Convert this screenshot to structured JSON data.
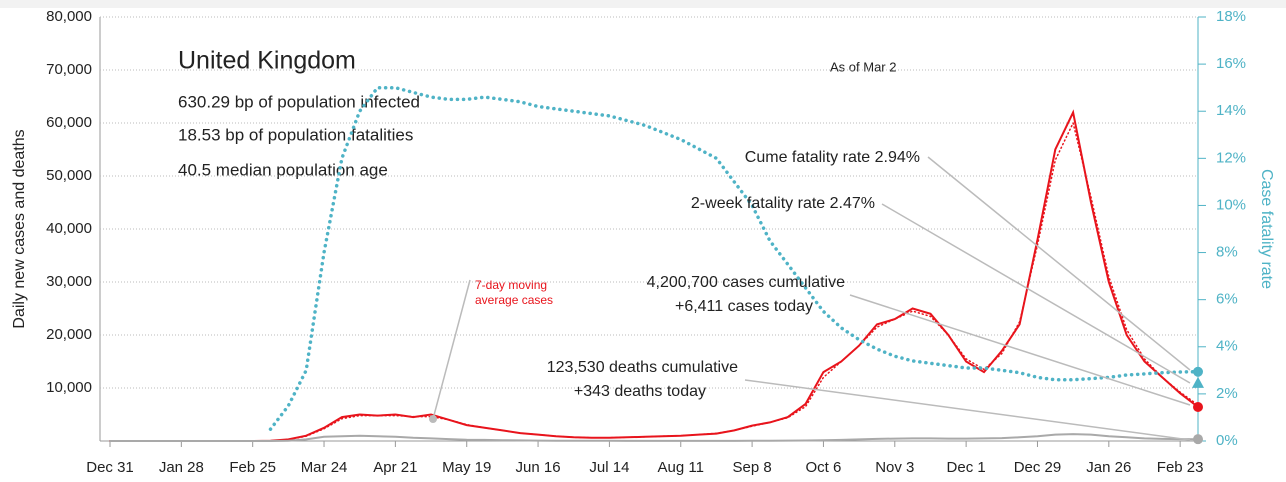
{
  "chart_data": {
    "type": "line",
    "panel_title": "United Kingdom",
    "stats": [
      "630.29 bp of population infected",
      "18.53 bp of population fatalities",
      "40.5 median population age"
    ],
    "as_of": "As of Mar 2",
    "ylabel": "Daily new cases and deaths",
    "y2label": "Case fatality rate",
    "xlim": [
      0,
      427
    ],
    "xticks": [
      {
        "value": 0,
        "label": "Dec 31"
      },
      {
        "value": 28,
        "label": "Jan 28"
      },
      {
        "value": 56,
        "label": "Feb 25"
      },
      {
        "value": 84,
        "label": "Mar 24"
      },
      {
        "value": 112,
        "label": "Apr 21"
      },
      {
        "value": 140,
        "label": "May 19"
      },
      {
        "value": 168,
        "label": "Jun 16"
      },
      {
        "value": 196,
        "label": "Jul 14"
      },
      {
        "value": 224,
        "label": "Aug 11"
      },
      {
        "value": 252,
        "label": "Sep 8"
      },
      {
        "value": 280,
        "label": "Oct 6"
      },
      {
        "value": 308,
        "label": "Nov 3"
      },
      {
        "value": 336,
        "label": "Dec 1"
      },
      {
        "value": 364,
        "label": "Dec 29"
      },
      {
        "value": 392,
        "label": "Jan 26"
      },
      {
        "value": 420,
        "label": "Feb 23"
      }
    ],
    "ylim": [
      0,
      80000
    ],
    "yticks": [
      {
        "value": 10000,
        "label": "10,000"
      },
      {
        "value": 20000,
        "label": "20,000"
      },
      {
        "value": 30000,
        "label": "30,000"
      },
      {
        "value": 40000,
        "label": "40,000"
      },
      {
        "value": 50000,
        "label": "50,000"
      },
      {
        "value": 60000,
        "label": "60,000"
      },
      {
        "value": 70000,
        "label": "70,000"
      },
      {
        "value": 80000,
        "label": "80,000"
      }
    ],
    "y2lim": [
      0,
      18
    ],
    "y2ticks": [
      {
        "value": 0,
        "label": "0%"
      },
      {
        "value": 2,
        "label": "2%"
      },
      {
        "value": 4,
        "label": "4%"
      },
      {
        "value": 6,
        "label": "6%"
      },
      {
        "value": 8,
        "label": "8%"
      },
      {
        "value": 10,
        "label": "10%"
      },
      {
        "value": 12,
        "label": "12%"
      },
      {
        "value": 14,
        "label": "14%"
      },
      {
        "value": 16,
        "label": "16%"
      },
      {
        "value": 18,
        "label": "18%"
      }
    ],
    "grid": true,
    "x": [
      0,
      7,
      14,
      21,
      28,
      35,
      42,
      49,
      56,
      63,
      70,
      77,
      84,
      91,
      98,
      105,
      112,
      119,
      126,
      133,
      140,
      147,
      154,
      161,
      168,
      175,
      182,
      189,
      196,
      203,
      210,
      217,
      224,
      231,
      238,
      245,
      252,
      259,
      266,
      273,
      280,
      287,
      294,
      301,
      308,
      315,
      322,
      329,
      336,
      343,
      350,
      357,
      364,
      371,
      378,
      385,
      392,
      399,
      406,
      413,
      420,
      427
    ],
    "series": [
      {
        "color": "#e8141c",
        "style": "solid",
        "values": [
          0,
          0,
          0,
          0,
          0,
          0,
          0,
          0,
          0,
          50,
          300,
          1000,
          2500,
          4500,
          5000,
          4800,
          5000,
          4500,
          5000,
          4000,
          3000,
          2500,
          2000,
          1500,
          1200,
          900,
          700,
          600,
          600,
          700,
          800,
          900,
          1000,
          1200,
          1400,
          2000,
          2900,
          3500,
          4500,
          7000,
          13000,
          15000,
          18000,
          22000,
          23000,
          25000,
          24000,
          20000,
          15000,
          13000,
          17000,
          22000,
          38000,
          55000,
          62000,
          45000,
          30000,
          20000,
          15000,
          12000,
          9000,
          6411
        ]
      },
      {
        "color": "#e8141c",
        "style": "dotted",
        "values": [
          0,
          0,
          0,
          0,
          0,
          0,
          0,
          0,
          0,
          30,
          250,
          900,
          2300,
          4200,
          4800,
          4800,
          4800,
          4600,
          4600,
          4000,
          3100,
          2500,
          2000,
          1500,
          1200,
          900,
          700,
          620,
          620,
          700,
          800,
          900,
          1000,
          1200,
          1450,
          2000,
          2800,
          3500,
          4400,
          6500,
          12000,
          15000,
          18000,
          21500,
          23000,
          24500,
          23500,
          20000,
          15500,
          13500,
          16500,
          22500,
          37000,
          53000,
          60000,
          46000,
          31000,
          21000,
          15500,
          12000,
          9200,
          6800
        ]
      },
      {
        "color": "#a9a9a9",
        "style": "solid",
        "values": [
          0,
          0,
          0,
          0,
          0,
          0,
          0,
          0,
          0,
          0,
          50,
          300,
          800,
          900,
          1000,
          900,
          800,
          600,
          500,
          350,
          250,
          200,
          150,
          120,
          80,
          60,
          50,
          40,
          30,
          25,
          20,
          20,
          20,
          20,
          20,
          25,
          30,
          40,
          70,
          100,
          150,
          200,
          300,
          400,
          450,
          500,
          500,
          450,
          450,
          500,
          550,
          700,
          900,
          1200,
          1300,
          1200,
          900,
          700,
          500,
          400,
          350,
          343
        ]
      },
      {
        "color": "#4fb3c6",
        "style": "dotted",
        "axis": "y2",
        "values": [
          null,
          null,
          null,
          null,
          null,
          null,
          null,
          null,
          null,
          0.5,
          1.5,
          3,
          8,
          12,
          14,
          15,
          15,
          14.8,
          14.6,
          14.5,
          14.5,
          14.6,
          14.5,
          14.4,
          14.2,
          14.1,
          14,
          13.9,
          13.8,
          13.6,
          13.4,
          13.1,
          12.8,
          12.4,
          12,
          11,
          10,
          8.5,
          7.5,
          6.5,
          5.5,
          4.8,
          4.3,
          3.9,
          3.6,
          3.4,
          3.3,
          3.2,
          3.1,
          3.1,
          3,
          2.9,
          2.7,
          2.6,
          2.6,
          2.65,
          2.7,
          2.8,
          2.85,
          2.9,
          2.93,
          2.94
        ]
      }
    ],
    "two_week_fatality_rate": 2.47,
    "annotations": [
      {
        "lines": [
          "7-day moving",
          "average cases"
        ]
      },
      {
        "lines": [
          "Cume fatality rate 2.94%"
        ]
      },
      {
        "lines": [
          "2-week fatality rate 2.47%"
        ]
      },
      {
        "lines": [
          "4,200,700 cases cumulative",
          "+6,411 cases today"
        ]
      },
      {
        "lines": [
          "123,530 deaths cumulative",
          "+343 deaths today"
        ]
      }
    ]
  }
}
